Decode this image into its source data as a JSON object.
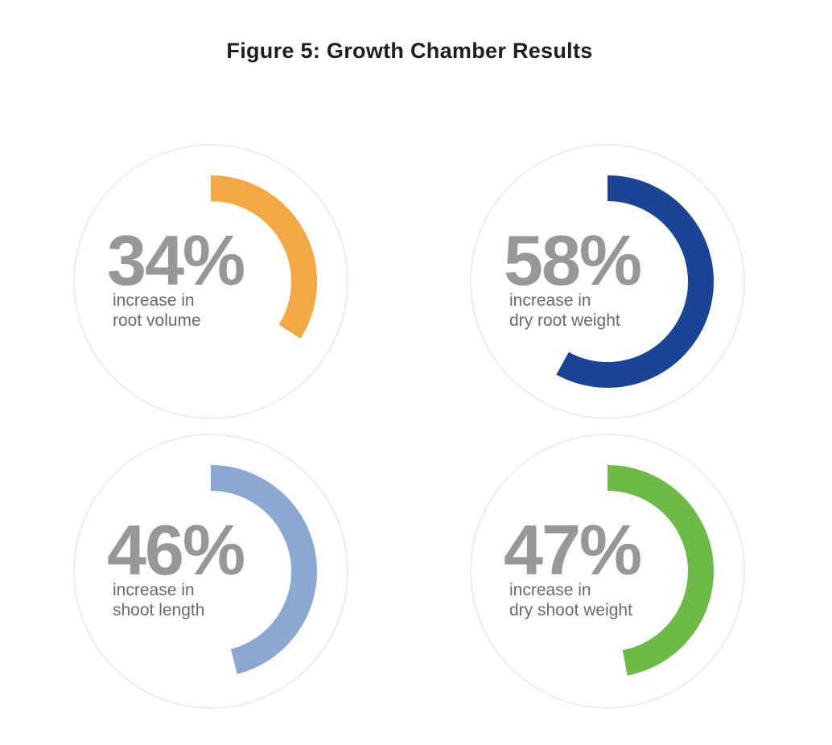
{
  "chart_data": {
    "type": "gauge",
    "title": "Figure 5: Growth Chamber Results",
    "items": [
      {
        "value": 34,
        "value_text": "34%",
        "label_lines": [
          "increase in",
          "root volume"
        ],
        "color": "#F4A844"
      },
      {
        "value": 58,
        "value_text": "58%",
        "label_lines": [
          "increase in",
          "dry root weight"
        ],
        "color": "#1A4597"
      },
      {
        "value": 46,
        "value_text": "46%",
        "label_lines": [
          "increase in",
          "shoot length"
        ],
        "color": "#8AA8D1"
      },
      {
        "value": 47,
        "value_text": "47%",
        "label_lines": [
          "increase in",
          "dry shoot weight"
        ],
        "color": "#6CBB46"
      }
    ]
  }
}
